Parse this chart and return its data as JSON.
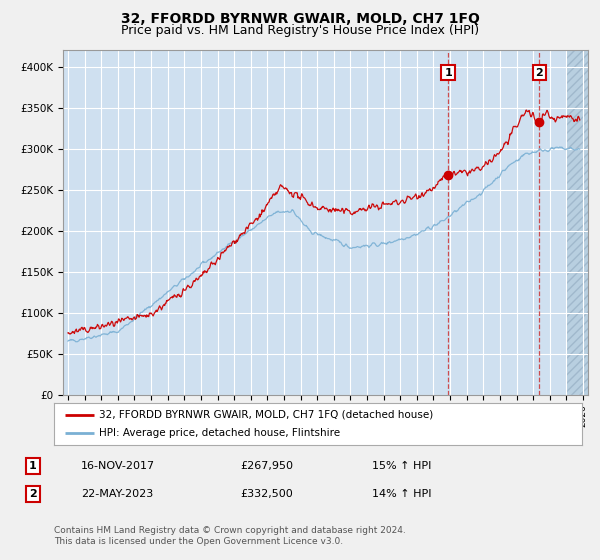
{
  "title": "32, FFORDD BYRNWR GWAIR, MOLD, CH7 1FQ",
  "subtitle": "Price paid vs. HM Land Registry's House Price Index (HPI)",
  "x_start_year": 1995,
  "x_end_year": 2026,
  "ylim": [
    0,
    420000
  ],
  "yticks": [
    0,
    50000,
    100000,
    150000,
    200000,
    250000,
    300000,
    350000,
    400000
  ],
  "ytick_labels": [
    "£0",
    "£50K",
    "£100K",
    "£150K",
    "£200K",
    "£250K",
    "£300K",
    "£350K",
    "£400K"
  ],
  "background_color": "#cfe0f0",
  "fig_bg_color": "#f0f0f0",
  "hatch_color": "#b8cfe0",
  "grid_color": "#ffffff",
  "sale1_date": 2017.88,
  "sale1_price": 267950,
  "sale1_label": "1",
  "sale2_date": 2023.38,
  "sale2_price": 332500,
  "sale2_label": "2",
  "red_line_color": "#cc0000",
  "blue_line_color": "#7ab0d4",
  "legend_property_label": "32, FFORDD BYRNWR GWAIR, MOLD, CH7 1FQ (detached house)",
  "legend_hpi_label": "HPI: Average price, detached house, Flintshire",
  "annotation1_date": "16-NOV-2017",
  "annotation1_price": "£267,950",
  "annotation1_hpi": "15% ↑ HPI",
  "annotation2_date": "22-MAY-2023",
  "annotation2_price": "£332,500",
  "annotation2_hpi": "14% ↑ HPI",
  "footer": "Contains HM Land Registry data © Crown copyright and database right 2024.\nThis data is licensed under the Open Government Licence v3.0.",
  "title_fontsize": 10,
  "subtitle_fontsize": 9
}
